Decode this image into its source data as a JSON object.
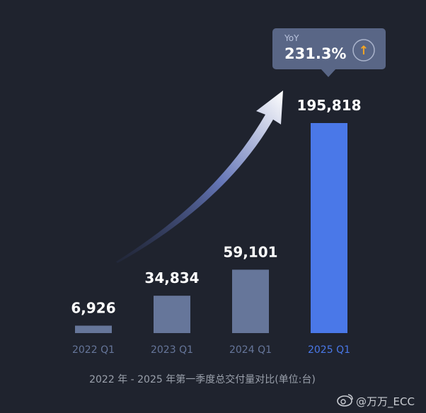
{
  "chart_data": {
    "type": "bar",
    "categories": [
      "2022 Q1",
      "2023 Q1",
      "2024 Q1",
      "2025 Q1"
    ],
    "values": [
      6926,
      34834,
      59101,
      195818
    ],
    "value_labels": [
      "6,926",
      "34,834",
      "59,101",
      "195,818"
    ],
    "highlight_index": 3,
    "caption": "2022 年 - 2025 年第一季度总交付量对比(单位:台)",
    "grid": false,
    "legend": "none",
    "colors": {
      "background": "#1f232e",
      "bar": "#66769a",
      "bar_highlight": "#4a78e8",
      "category_label": "#66769a",
      "category_label_highlight": "#4a78e8"
    }
  },
  "yoy": {
    "title": "YoY",
    "value": "231.3%",
    "arrow_icon": "arrow-up-icon",
    "arrow_glyph": "↑"
  },
  "watermark": {
    "icon": "weibo-icon",
    "text": "@万万_ECC"
  }
}
